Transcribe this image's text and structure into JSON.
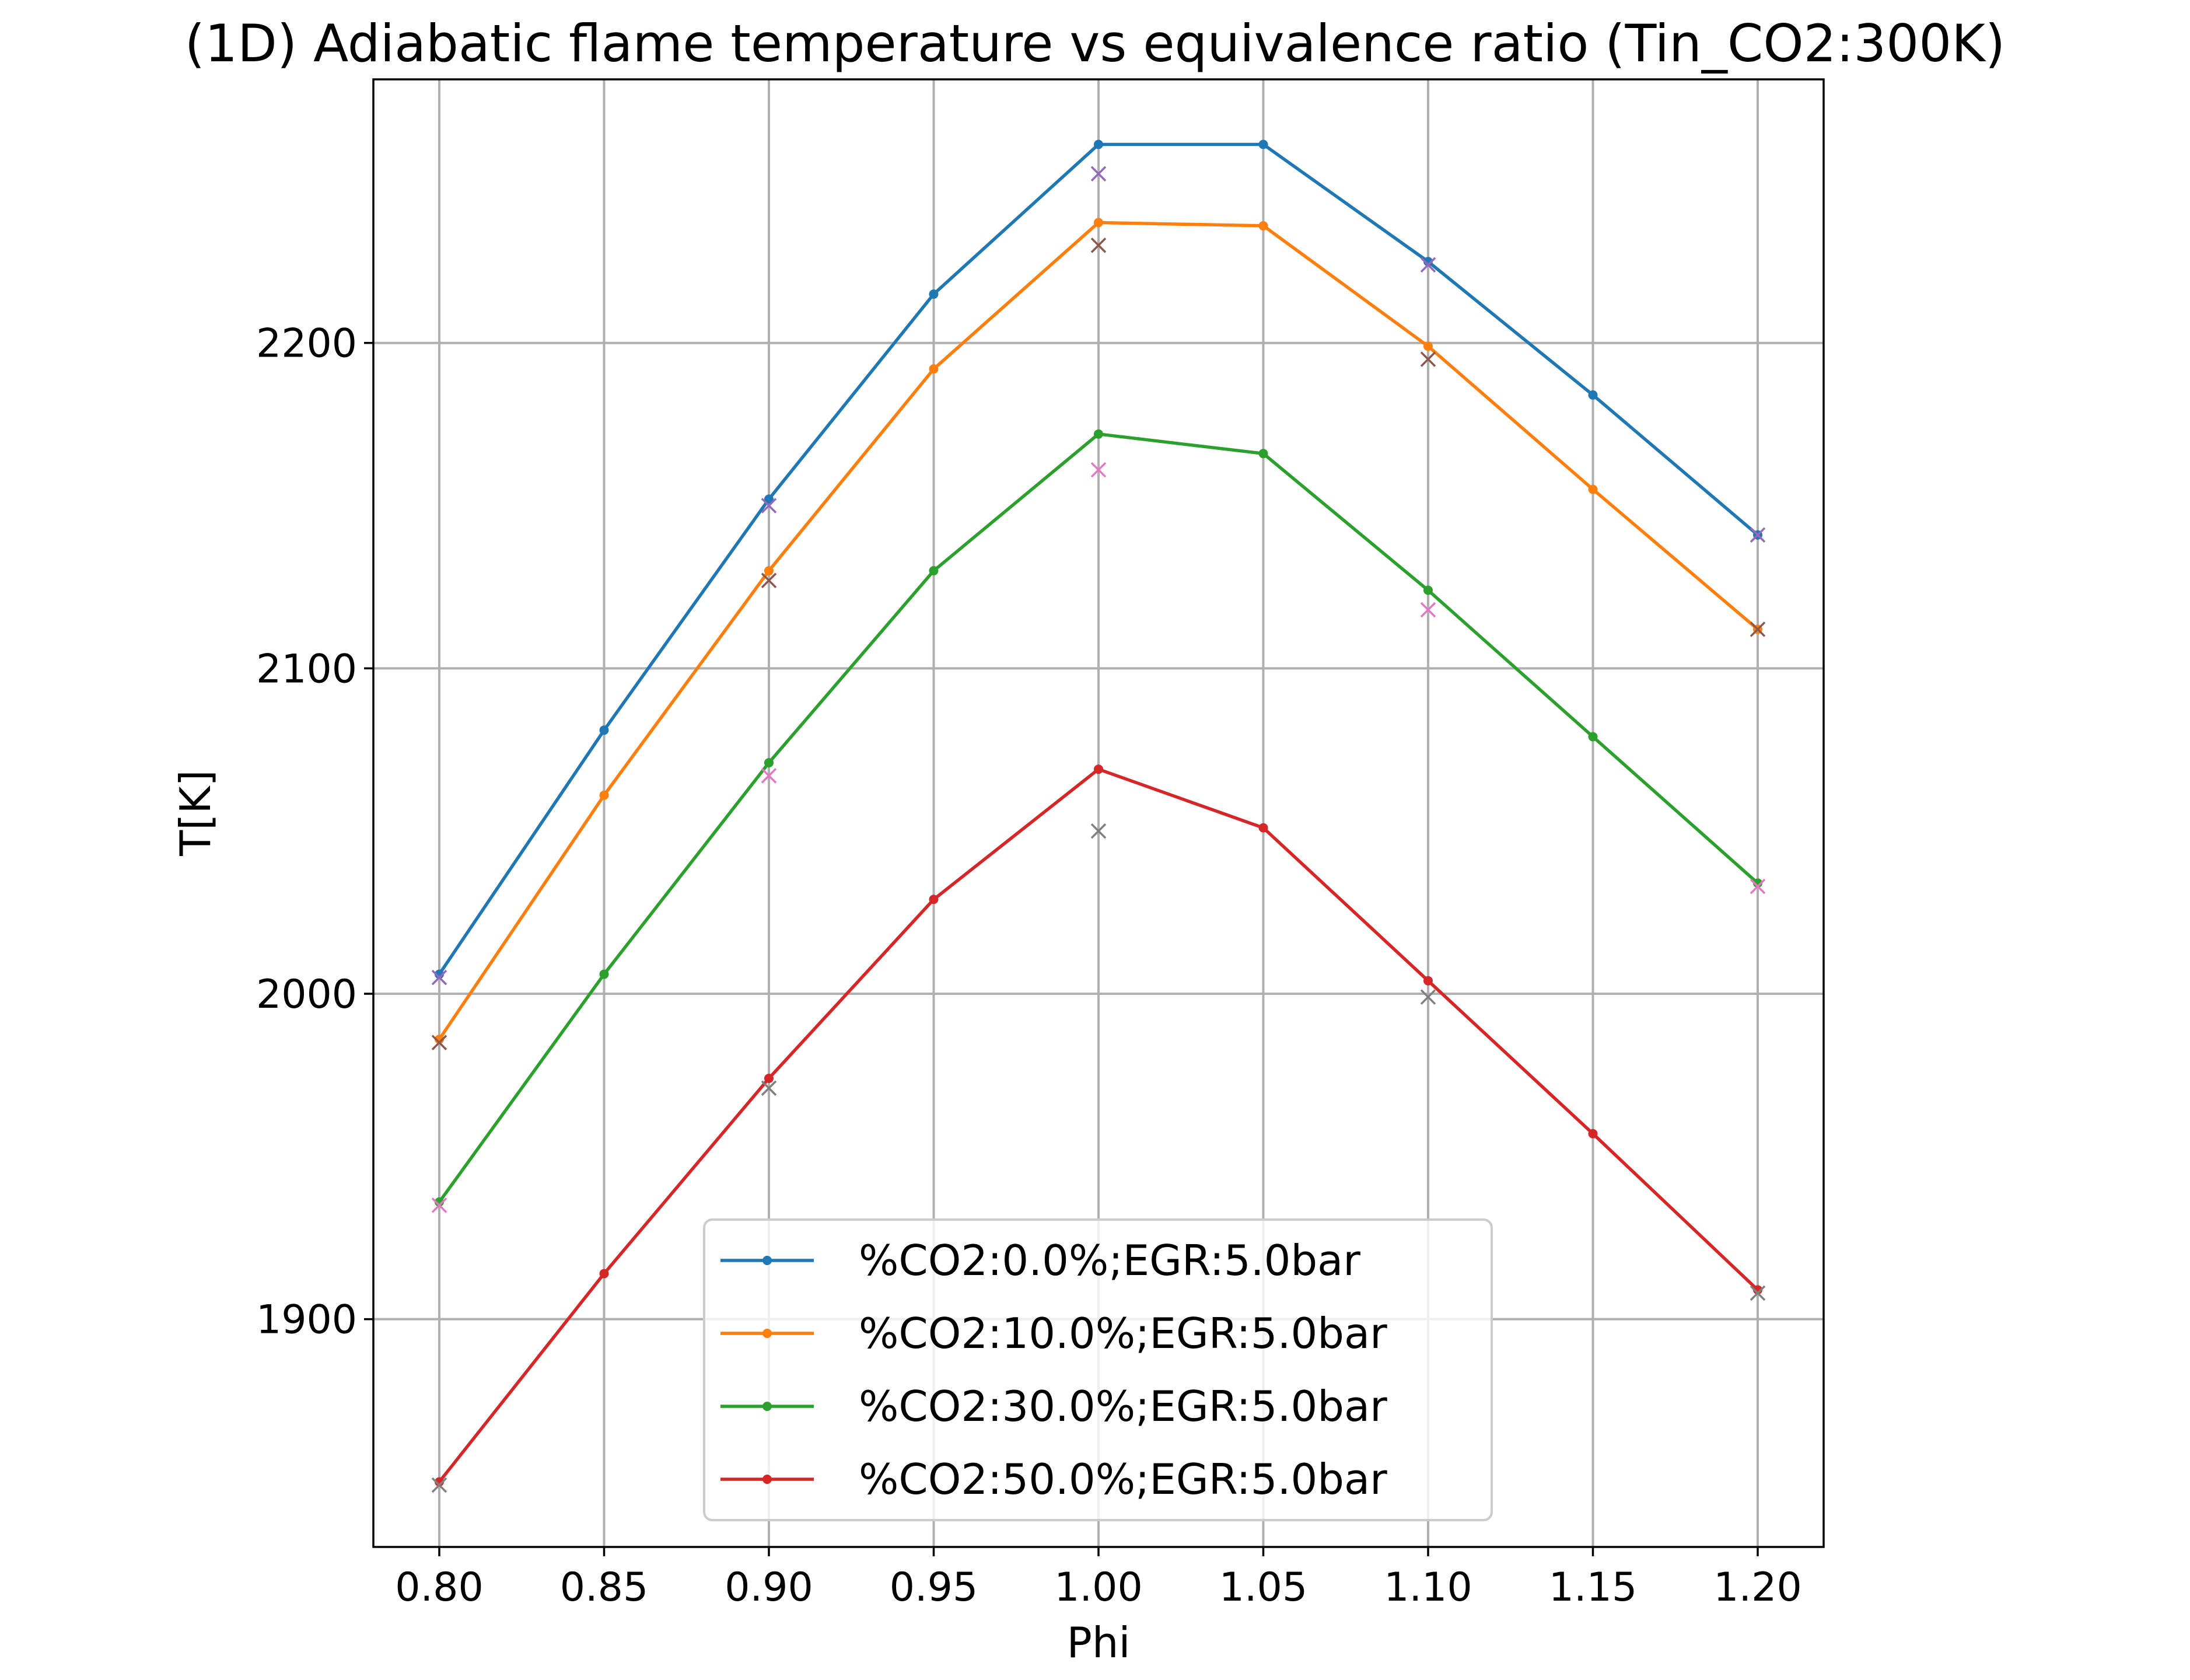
{
  "chart_data": {
    "type": "line",
    "title": "(1D) Adiabatic flame temperature vs equivalence ratio (Tin_CO2:300K)",
    "xlabel": "Phi",
    "ylabel": "T[K]",
    "xlim": [
      0.78,
      1.22
    ],
    "ylim": [
      1830,
      2281
    ],
    "xticks": [
      0.8,
      0.85,
      0.9,
      0.95,
      1.0,
      1.05,
      1.1,
      1.15,
      1.2
    ],
    "xtick_labels": [
      "0.80",
      "0.85",
      "0.90",
      "0.95",
      "1.00",
      "1.05",
      "1.10",
      "1.15",
      "1.20"
    ],
    "yticks": [
      1900,
      2000,
      2100,
      2200
    ],
    "ytick_labels": [
      "1900",
      "2000",
      "2100",
      "2200"
    ],
    "grid": true,
    "legend_position": "lower-center",
    "x": [
      0.8,
      0.85,
      0.9,
      0.95,
      1.0,
      1.05,
      1.1,
      1.15,
      1.2
    ],
    "series": [
      {
        "name": "%CO2:0.0%;EGR:5.0bar",
        "color": "#1f77b4",
        "values": [
          2006,
          2081,
          2152,
          2215,
          2261,
          2261,
          2225,
          2184,
          2141
        ]
      },
      {
        "name": "%CO2:10.0%;EGR:5.0bar",
        "color": "#ff7f0e",
        "values": [
          1986,
          2061,
          2130,
          2192,
          2237,
          2236,
          2199,
          2155,
          2112
        ]
      },
      {
        "name": "%CO2:30.0%;EGR:5.0bar",
        "color": "#2ca02c",
        "values": [
          1936,
          2006,
          2071,
          2130,
          2172,
          2166,
          2124,
          2079,
          2034
        ]
      },
      {
        "name": "%CO2:50.0%;EGR:5.0bar",
        "color": "#d62728",
        "values": [
          1850,
          1914,
          1974,
          2029,
          2069,
          2051,
          2004,
          1957,
          1909
        ]
      }
    ],
    "reference_points": [
      {
        "color": "#9467bd",
        "x": [
          0.8,
          0.9,
          1.0,
          1.1,
          1.2
        ],
        "values": [
          2005,
          2150,
          2252,
          2224,
          2141
        ]
      },
      {
        "color": "#8c564b",
        "x": [
          0.8,
          0.9,
          1.0,
          1.1,
          1.2
        ],
        "values": [
          1985,
          2127,
          2230,
          2195,
          2112
        ]
      },
      {
        "color": "#e377c2",
        "x": [
          0.8,
          0.9,
          1.0,
          1.1,
          1.2
        ],
        "values": [
          1935,
          2067,
          2161,
          2118,
          2033
        ]
      },
      {
        "color": "#7f7f7f",
        "x": [
          0.8,
          0.9,
          1.0,
          1.1,
          1.2
        ],
        "values": [
          1849,
          1971,
          2050,
          1999,
          1908
        ]
      }
    ]
  }
}
